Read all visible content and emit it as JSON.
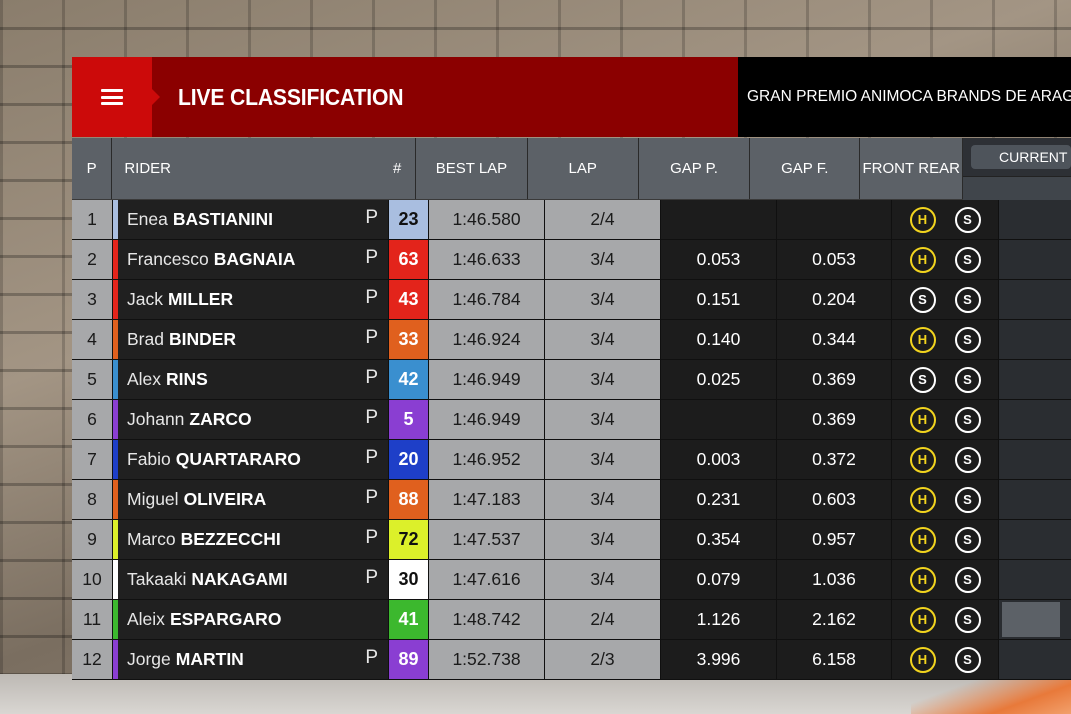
{
  "header": {
    "title": "LIVE CLASSIFICATION",
    "event": "GRAN PREMIO ANIMOCA BRANDS DE ARAGON"
  },
  "columns": {
    "pos": "P",
    "rider": "RIDER",
    "number": "#",
    "best_lap": "BEST LAP",
    "lap": "LAP",
    "gap_p": "GAP P.",
    "gap_f": "GAP F.",
    "front": "FRONT",
    "rear": "REAR",
    "current": "CURRENT"
  },
  "colors": {
    "compound_hard": "#f2d41e",
    "compound_soft": "#ffffff",
    "header_red": "#cc0a0a",
    "header_dark_red": "#8b0000"
  },
  "rows": [
    {
      "pos": "1",
      "first": "Enea",
      "last": "BASTIANINI",
      "pit": "P",
      "number": "23",
      "team_color": "#a9bee0",
      "num_bg": "#a9bee0",
      "num_fg": "#111111",
      "best_lap": "1:46.580",
      "lap": "2/4",
      "gap_p": "",
      "gap_f": "",
      "front": "H",
      "rear": "S"
    },
    {
      "pos": "2",
      "first": "Francesco",
      "last": "BAGNAIA",
      "pit": "P",
      "number": "63",
      "team_color": "#e3241b",
      "num_bg": "#e3241b",
      "num_fg": "#ffffff",
      "best_lap": "1:46.633",
      "lap": "3/4",
      "gap_p": "0.053",
      "gap_f": "0.053",
      "front": "H",
      "rear": "S"
    },
    {
      "pos": "3",
      "first": "Jack",
      "last": "MILLER",
      "pit": "P",
      "number": "43",
      "team_color": "#e3241b",
      "num_bg": "#e3241b",
      "num_fg": "#ffffff",
      "best_lap": "1:46.784",
      "lap": "3/4",
      "gap_p": "0.151",
      "gap_f": "0.204",
      "front": "S",
      "rear": "S"
    },
    {
      "pos": "4",
      "first": "Brad",
      "last": "BINDER",
      "pit": "P",
      "number": "33",
      "team_color": "#e0601e",
      "num_bg": "#e0601e",
      "num_fg": "#ffffff",
      "best_lap": "1:46.924",
      "lap": "3/4",
      "gap_p": "0.140",
      "gap_f": "0.344",
      "front": "H",
      "rear": "S"
    },
    {
      "pos": "5",
      "first": "Alex",
      "last": "RINS",
      "pit": "P",
      "number": "42",
      "team_color": "#3a8fcf",
      "num_bg": "#3a8fcf",
      "num_fg": "#ffffff",
      "best_lap": "1:46.949",
      "lap": "3/4",
      "gap_p": "0.025",
      "gap_f": "0.369",
      "front": "S",
      "rear": "S"
    },
    {
      "pos": "6",
      "first": "Johann",
      "last": "ZARCO",
      "pit": "P",
      "number": "5",
      "team_color": "#8a3ed2",
      "num_bg": "#8a3ed2",
      "num_fg": "#ffffff",
      "best_lap": "1:46.949",
      "lap": "3/4",
      "gap_p": "",
      "gap_f": "0.369",
      "front": "H",
      "rear": "S"
    },
    {
      "pos": "7",
      "first": "Fabio",
      "last": "QUARTARARO",
      "pit": "P",
      "number": "20",
      "team_color": "#1e3fc8",
      "num_bg": "#1e3fc8",
      "num_fg": "#ffffff",
      "best_lap": "1:46.952",
      "lap": "3/4",
      "gap_p": "0.003",
      "gap_f": "0.372",
      "front": "H",
      "rear": "S"
    },
    {
      "pos": "8",
      "first": "Miguel",
      "last": "OLIVEIRA",
      "pit": "P",
      "number": "88",
      "team_color": "#e0601e",
      "num_bg": "#e0601e",
      "num_fg": "#ffffff",
      "best_lap": "1:47.183",
      "lap": "3/4",
      "gap_p": "0.231",
      "gap_f": "0.603",
      "front": "H",
      "rear": "S"
    },
    {
      "pos": "9",
      "first": "Marco",
      "last": "BEZZECCHI",
      "pit": "P",
      "number": "72",
      "team_color": "#dcf02a",
      "num_bg": "#dcf02a",
      "num_fg": "#111111",
      "best_lap": "1:47.537",
      "lap": "3/4",
      "gap_p": "0.354",
      "gap_f": "0.957",
      "front": "H",
      "rear": "S"
    },
    {
      "pos": "10",
      "first": "Takaaki",
      "last": "NAKAGAMI",
      "pit": "P",
      "number": "30",
      "team_color": "#ffffff",
      "num_bg": "#ffffff",
      "num_fg": "#111111",
      "best_lap": "1:47.616",
      "lap": "3/4",
      "gap_p": "0.079",
      "gap_f": "1.036",
      "front": "H",
      "rear": "S"
    },
    {
      "pos": "11",
      "first": "Aleix",
      "last": "ESPARGARO",
      "pit": "",
      "number": "41",
      "team_color": "#3cb82e",
      "num_bg": "#3cb82e",
      "num_fg": "#ffffff",
      "best_lap": "1:48.742",
      "lap": "2/4",
      "gap_p": "1.126",
      "gap_f": "2.162",
      "front": "H",
      "rear": "S",
      "current_bar": true
    },
    {
      "pos": "12",
      "first": "Jorge",
      "last": "MARTIN",
      "pit": "P",
      "number": "89",
      "team_color": "#8a3ed2",
      "num_bg": "#8a3ed2",
      "num_fg": "#ffffff",
      "best_lap": "1:52.738",
      "lap": "2/3",
      "gap_p": "3.996",
      "gap_f": "6.158",
      "front": "H",
      "rear": "S"
    }
  ]
}
